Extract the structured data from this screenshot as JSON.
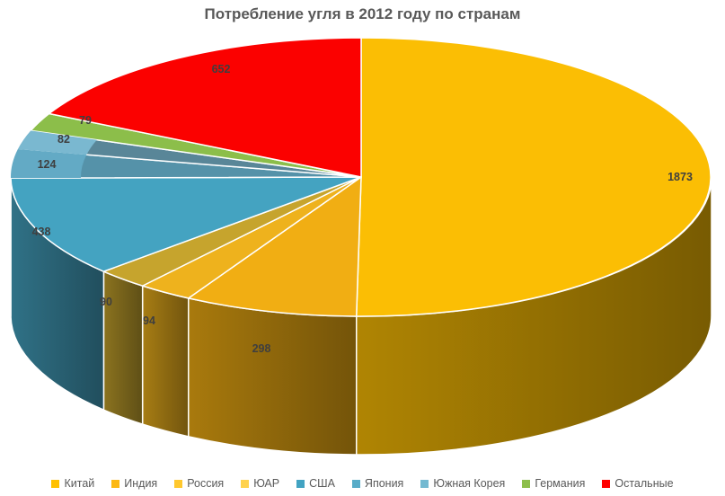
{
  "chart_data": {
    "type": "pie",
    "style": "3d",
    "title": "Потребление угля в 2012 году по странам",
    "categories": [
      "Китай",
      "Индия",
      "Россия",
      "ЮАР",
      "США",
      "Япония",
      "Южная Корея",
      "Германия",
      "Остальные"
    ],
    "values": [
      1873,
      298,
      94,
      90,
      438,
      124,
      82,
      79,
      652
    ],
    "total": 3730,
    "data_labels_shown": true,
    "start_angle_deg": 0,
    "direction": "clockwise",
    "legend_position": "bottom",
    "colors_top": [
      "#FBBE04",
      "#F1AE13",
      "#EEB21D",
      "#C6A42D",
      "#44A3C1",
      "#63AAC5",
      "#7AB8D0",
      "#8CBE4A",
      "#FB0100"
    ],
    "colors_legend": [
      "#FFC000",
      "#FCB813",
      "#FFC82E",
      "#FFD24D",
      "#42A3C2",
      "#58ACC8",
      "#74B9D1",
      "#8DBE4B",
      "#FF0000"
    ],
    "title_color": "#595959",
    "label_color": "#3F3F3F",
    "legend_text_color": "#595959",
    "background_color": "#FFFFFF"
  }
}
